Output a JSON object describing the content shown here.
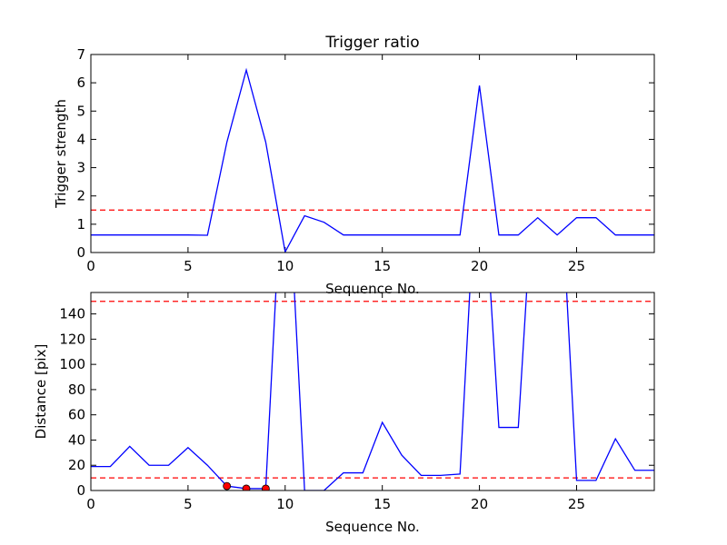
{
  "chart_data": [
    {
      "type": "line",
      "title": "Trigger ratio",
      "xlabel": "Sequence No.",
      "ylabel": "Trigger strength",
      "xlim": [
        0,
        29
      ],
      "ylim": [
        0,
        7
      ],
      "xticks": [
        0,
        5,
        10,
        15,
        20,
        25
      ],
      "yticks": [
        0,
        1,
        2,
        3,
        4,
        5,
        6,
        7
      ],
      "grid": false,
      "series": [
        {
          "color": "#0000ff",
          "x": [
            0,
            1,
            2,
            3,
            4,
            5,
            6,
            7,
            8,
            9,
            10,
            11,
            12,
            13,
            14,
            15,
            16,
            17,
            18,
            19,
            20,
            21,
            22,
            23,
            24,
            25,
            26,
            27,
            28,
            29
          ],
          "values": [
            0.62,
            0.62,
            0.62,
            0.62,
            0.62,
            0.62,
            0.61,
            3.9,
            6.45,
            3.9,
            0.02,
            1.3,
            1.07,
            0.62,
            0.62,
            0.62,
            0.62,
            0.62,
            0.62,
            0.62,
            5.9,
            0.62,
            0.62,
            1.23,
            0.62,
            1.23,
            1.23,
            0.62,
            0.62,
            0.62
          ]
        }
      ],
      "hlines": [
        {
          "y": 1.5,
          "color": "#ff0000",
          "style": "dashed"
        }
      ]
    },
    {
      "type": "line",
      "title": "",
      "xlabel": "Sequence No.",
      "ylabel": "Distance [pix]",
      "xlim": [
        0,
        29
      ],
      "ylim": [
        0,
        157
      ],
      "xticks": [
        0,
        5,
        10,
        15,
        20,
        25
      ],
      "yticks": [
        0,
        20,
        40,
        60,
        80,
        100,
        120,
        140
      ],
      "grid": false,
      "series": [
        {
          "color": "#0000ff",
          "x": [
            0,
            1,
            2,
            3,
            4,
            5,
            6,
            7,
            8,
            9,
            10,
            11,
            12,
            13,
            14,
            15,
            16,
            17,
            18,
            19,
            20,
            21,
            22,
            23,
            24,
            25,
            26,
            27,
            28,
            29
          ],
          "values": [
            19,
            19,
            35,
            20,
            20,
            34,
            20,
            3.5,
            1.5,
            1.5,
            300,
            0,
            0,
            14,
            14,
            54,
            28,
            12,
            12,
            13,
            300,
            50,
            50,
            300,
            300,
            8,
            8,
            41,
            16,
            16
          ]
        }
      ],
      "markers": {
        "color": "#ff0000",
        "x": [
          7,
          8,
          9
        ],
        "values": [
          3.5,
          1.5,
          1.5
        ]
      },
      "hlines": [
        {
          "y": 150,
          "color": "#ff0000",
          "style": "dashed"
        },
        {
          "y": 10,
          "color": "#ff0000",
          "style": "dashed"
        }
      ]
    }
  ]
}
